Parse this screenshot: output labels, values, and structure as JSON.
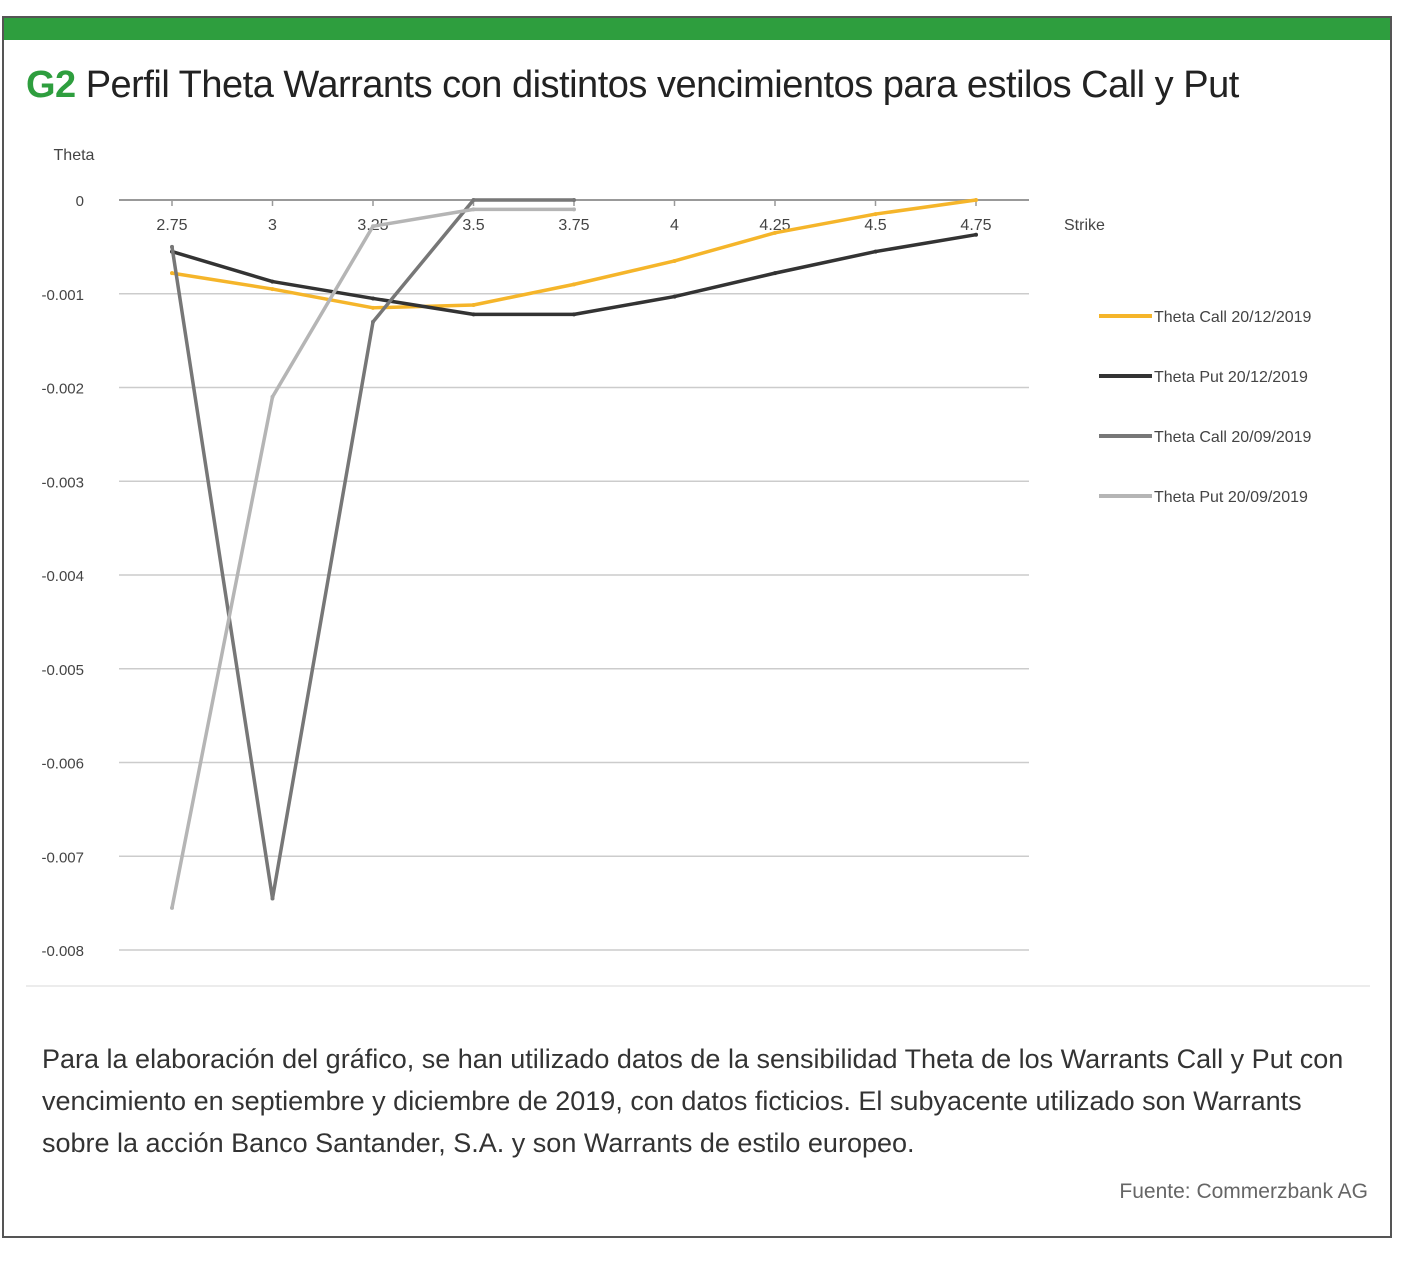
{
  "header": {
    "tag": "G2",
    "title": "Perfil Theta Warrants con distintos vencimientos para estilos Call y Put"
  },
  "colors": {
    "accent_green": "#2e9e3e",
    "grid": "#cccccc",
    "axis": "#999999"
  },
  "chart_data": {
    "type": "line",
    "ylabel": "Theta",
    "xlabel": "Strike",
    "x": [
      2.75,
      3,
      3.25,
      3.5,
      3.75,
      4,
      4.25,
      4.5,
      4.75
    ],
    "x_tick_labels": [
      "2.75",
      "3",
      "3.25",
      "3.5",
      "3.75",
      "4",
      "4.25",
      "4.5",
      "4.75"
    ],
    "ylim": [
      -0.008,
      0
    ],
    "y_ticks": [
      0,
      -0.001,
      -0.002,
      -0.003,
      -0.004,
      -0.005,
      -0.006,
      -0.007,
      -0.008
    ],
    "y_tick_labels": [
      "0",
      "-0.001",
      "-0.002",
      "-0.003",
      "-0.004",
      "-0.005",
      "-0.006",
      "-0.007",
      "-0.008"
    ],
    "grid": true,
    "legend_position": "right",
    "series": [
      {
        "name": "Theta Call 20/12/2019",
        "color": "#f5b52a",
        "x": [
          2.75,
          3,
          3.25,
          3.5,
          3.75,
          4,
          4.25,
          4.5,
          4.75
        ],
        "values": [
          -0.00078,
          -0.00095,
          -0.00115,
          -0.00112,
          -0.0009,
          -0.00065,
          -0.00035,
          -0.00015,
          0
        ]
      },
      {
        "name": "Theta Put 20/12/2019",
        "color": "#333333",
        "x": [
          2.75,
          3,
          3.25,
          3.5,
          3.75,
          4,
          4.25,
          4.5,
          4.75
        ],
        "values": [
          -0.00055,
          -0.00087,
          -0.00105,
          -0.00122,
          -0.00122,
          -0.00103,
          -0.00078,
          -0.00055,
          -0.00037
        ]
      },
      {
        "name": "Theta Call 20/09/2019",
        "color": "#777777",
        "x": [
          2.75,
          3,
          3.25,
          3.5,
          3.75
        ],
        "values": [
          -0.0005,
          -0.00745,
          -0.0013,
          0,
          0
        ]
      },
      {
        "name": "Theta Put 20/09/2019",
        "color": "#b5b5b5",
        "x": [
          2.75,
          3,
          3.25,
          3.5,
          3.75
        ],
        "values": [
          -0.00755,
          -0.0021,
          -0.00028,
          -0.0001,
          -0.0001
        ]
      }
    ]
  },
  "caption": "Para la elaboración del gráfico, se han utilizado datos de la sensibilidad Theta de los Warrants Call y Put con vencimiento en septiembre y diciembre de 2019, con datos ficticios. El subyacente utilizado son Warrants sobre la acción Banco Santander, S.A. y son Warrants de estilo europeo.",
  "source": "Fuente:  Commerzbank AG"
}
